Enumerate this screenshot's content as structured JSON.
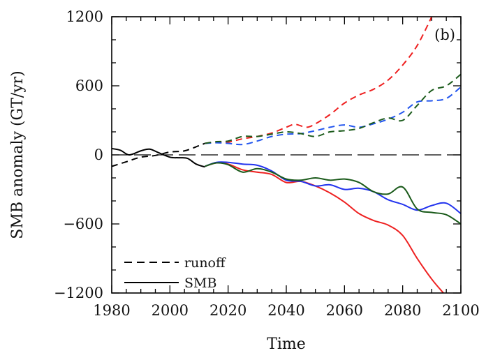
{
  "chart_data": {
    "type": "line",
    "panel_label": "(b)",
    "xlabel": "Time",
    "ylabel": "SMB anomaly (GT/yr)",
    "xlim": [
      1980,
      2100
    ],
    "ylim": [
      -1200,
      1200
    ],
    "x_ticks": [
      1980,
      2000,
      2020,
      2040,
      2060,
      2080,
      2100
    ],
    "y_ticks": [
      -1200,
      -600,
      0,
      600,
      1200
    ],
    "x_tick_labels": [
      "1980",
      "2000",
      "2020",
      "2040",
      "2060",
      "2080",
      "2100"
    ],
    "y_tick_labels": [
      "−1200",
      "−600",
      "0",
      "600",
      "1200"
    ],
    "zero_line": true,
    "grid": false,
    "legend": {
      "placement": "bottom-left",
      "entries": [
        {
          "label": "runoff",
          "style": "dashed"
        },
        {
          "label": "SMB",
          "style": "solid"
        }
      ]
    },
    "series": [
      {
        "style": "dashed",
        "color": "#000000",
        "x": [
          1980,
          1985,
          1990,
          1995,
          2000,
          2005,
          2010,
          2012
        ],
        "y": [
          -100,
          -60,
          -20,
          -5,
          25,
          35,
          80,
          100
        ]
      },
      {
        "style": "solid",
        "color": "#000000",
        "x": [
          1980,
          1983,
          1986,
          1990,
          1993,
          1996,
          2000,
          2003,
          2006,
          2009,
          2012
        ],
        "y": [
          55,
          40,
          0,
          35,
          50,
          20,
          -20,
          -25,
          -30,
          -80,
          -105
        ]
      },
      {
        "style": "dashed",
        "color": "#ee2020",
        "x": [
          2012,
          2016,
          2020,
          2025,
          2030,
          2035,
          2040,
          2043,
          2047,
          2050,
          2055,
          2060,
          2065,
          2070,
          2075,
          2080,
          2085,
          2090
        ],
        "y": [
          100,
          110,
          110,
          140,
          160,
          190,
          240,
          265,
          240,
          270,
          350,
          450,
          520,
          570,
          650,
          780,
          950,
          1200
        ]
      },
      {
        "style": "dashed",
        "color": "#2255ee",
        "x": [
          2012,
          2016,
          2020,
          2025,
          2030,
          2035,
          2040,
          2045,
          2050,
          2055,
          2060,
          2065,
          2070,
          2075,
          2080,
          2085,
          2090,
          2095,
          2100
        ],
        "y": [
          100,
          105,
          100,
          90,
          120,
          160,
          180,
          185,
          210,
          240,
          260,
          240,
          270,
          310,
          370,
          460,
          470,
          490,
          590
        ]
      },
      {
        "style": "dashed",
        "color": "#1a5a1a",
        "x": [
          2012,
          2016,
          2020,
          2025,
          2030,
          2035,
          2040,
          2045,
          2050,
          2055,
          2060,
          2065,
          2070,
          2075,
          2080,
          2085,
          2090,
          2095,
          2100
        ],
        "y": [
          100,
          115,
          120,
          160,
          160,
          180,
          200,
          185,
          160,
          200,
          210,
          230,
          280,
          320,
          300,
          430,
          560,
          600,
          700
        ]
      },
      {
        "style": "solid",
        "color": "#ee2020",
        "x": [
          2012,
          2016,
          2020,
          2025,
          2030,
          2035,
          2040,
          2045,
          2050,
          2055,
          2060,
          2065,
          2070,
          2075,
          2080,
          2085,
          2090,
          2094
        ],
        "y": [
          -100,
          -70,
          -80,
          -130,
          -150,
          -170,
          -240,
          -230,
          -270,
          -330,
          -410,
          -510,
          -570,
          -610,
          -700,
          -900,
          -1080,
          -1200
        ]
      },
      {
        "style": "solid",
        "color": "#2233ee",
        "x": [
          2012,
          2016,
          2020,
          2025,
          2030,
          2035,
          2040,
          2045,
          2050,
          2055,
          2060,
          2065,
          2070,
          2075,
          2080,
          2085,
          2090,
          2095,
          2100
        ],
        "y": [
          -100,
          -65,
          -65,
          -80,
          -90,
          -140,
          -220,
          -230,
          -270,
          -260,
          -300,
          -290,
          -320,
          -390,
          -430,
          -480,
          -440,
          -420,
          -510
        ]
      },
      {
        "style": "solid",
        "color": "#1a5a1a",
        "x": [
          2012,
          2016,
          2020,
          2025,
          2030,
          2035,
          2040,
          2045,
          2050,
          2055,
          2060,
          2065,
          2070,
          2075,
          2080,
          2085,
          2090,
          2095,
          2100
        ],
        "y": [
          -100,
          -70,
          -85,
          -150,
          -120,
          -150,
          -210,
          -220,
          -200,
          -220,
          -210,
          -240,
          -320,
          -340,
          -280,
          -470,
          -500,
          -520,
          -600
        ]
      }
    ]
  }
}
